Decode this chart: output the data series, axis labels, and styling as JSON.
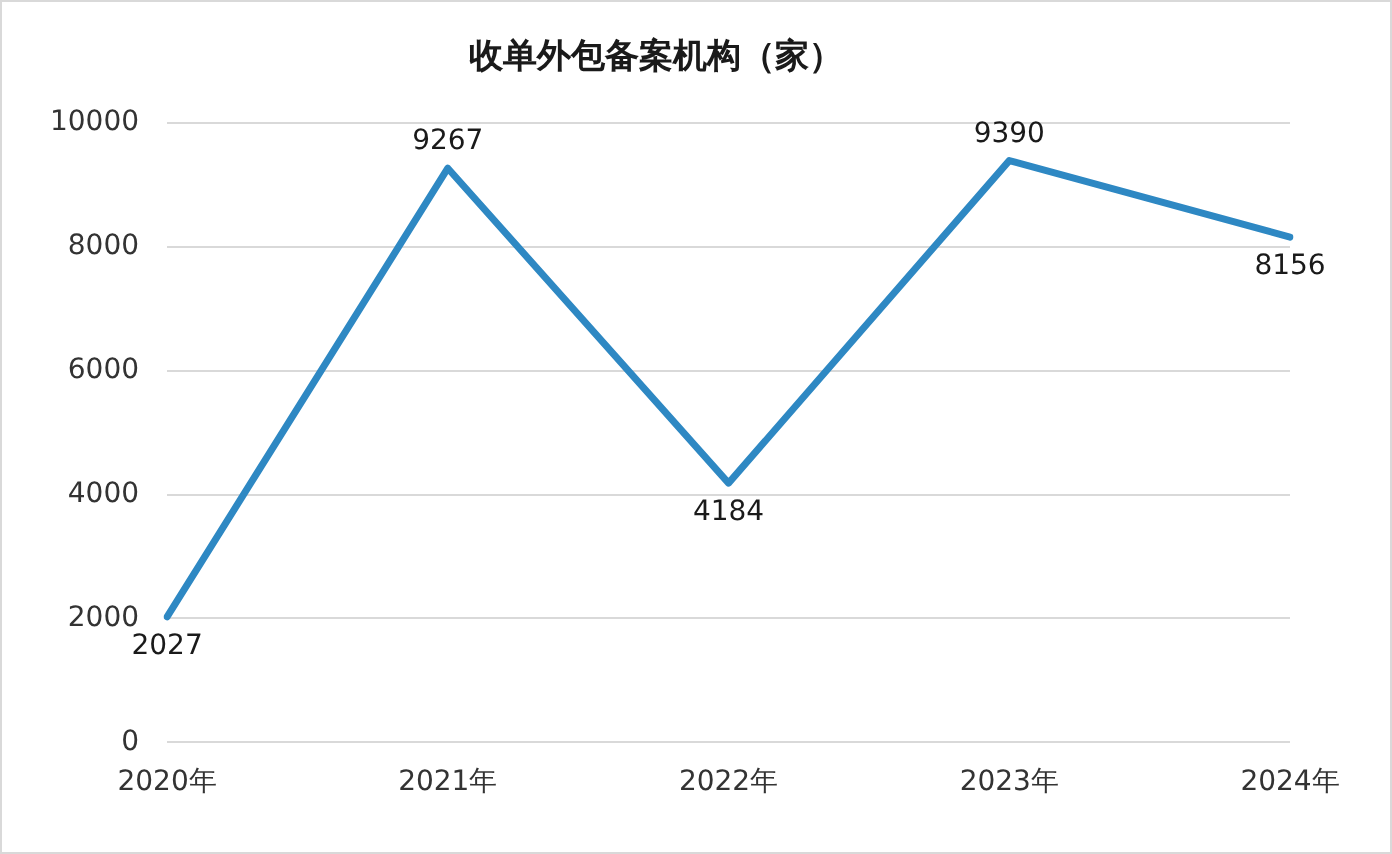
{
  "chart_data": {
    "type": "line",
    "title": "收单外包备案机构（家）",
    "categories": [
      "2020年",
      "2021年",
      "2022年",
      "2023年",
      "2024年"
    ],
    "series": [
      {
        "color": "#2e88c3",
        "values": [
          2027,
          9267,
          4184,
          9390,
          8156
        ]
      }
    ],
    "ylim": [
      0,
      10000
    ],
    "yticks": [
      0,
      2000,
      4000,
      6000,
      8000,
      10000
    ],
    "grid": "y",
    "legend": false,
    "marker": "none",
    "line_style": "solid",
    "data_labels": true
  }
}
